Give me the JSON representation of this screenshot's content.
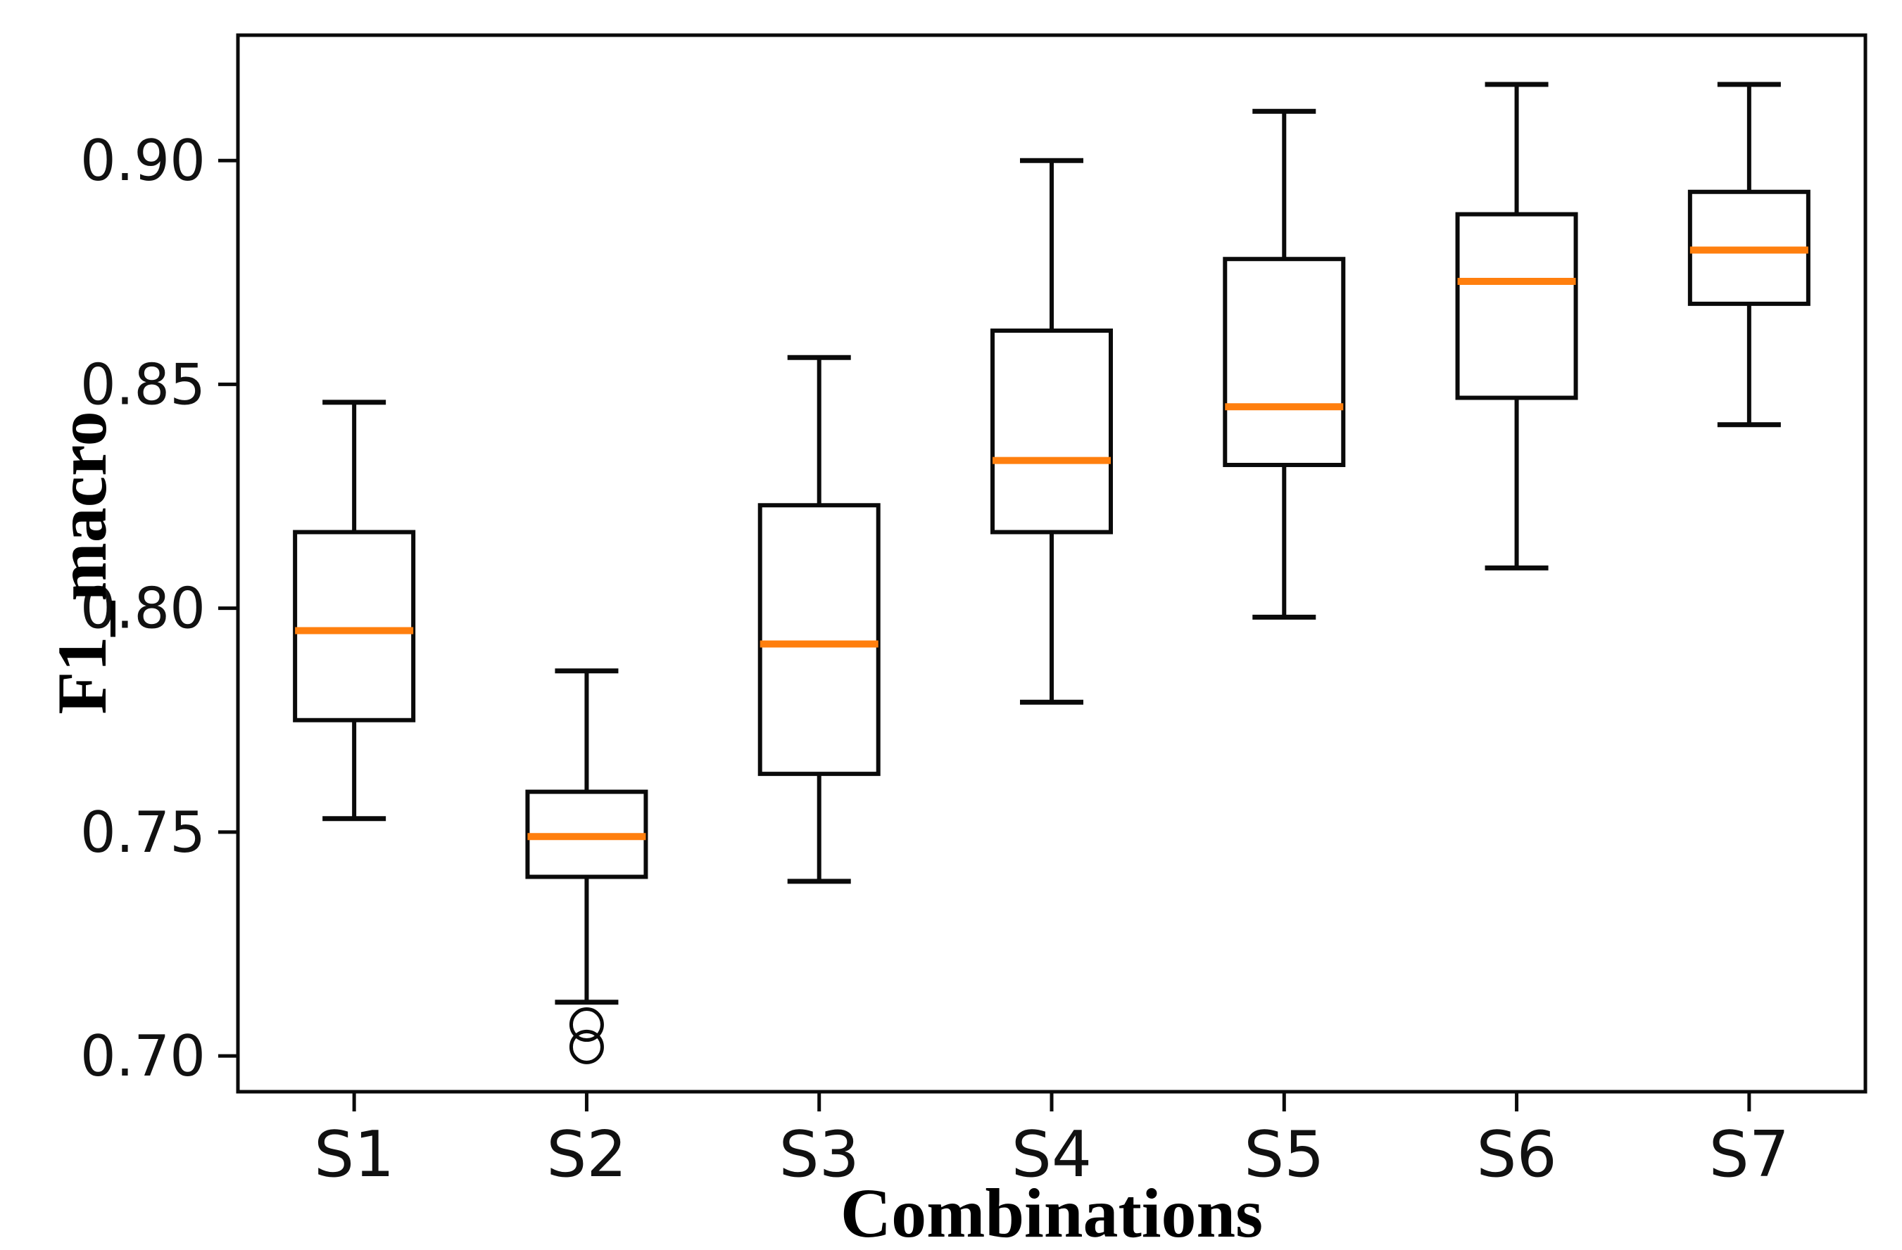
{
  "figure": {
    "background": "#ffffff",
    "border_color": "#0a0a0a"
  },
  "chart_data": {
    "type": "boxplot",
    "title": "",
    "xlabel": "Combinations",
    "ylabel": "F1_macro",
    "categories": [
      "S1",
      "S2",
      "S3",
      "S4",
      "S5",
      "S6",
      "S7"
    ],
    "yticks": [
      0.7,
      0.75,
      0.8,
      0.85,
      0.9
    ],
    "ytick_labels": [
      "0.70",
      "0.75",
      "0.80",
      "0.85",
      "0.90"
    ],
    "ylim": [
      0.692,
      0.928
    ],
    "grid": false,
    "legend": "none",
    "box_color": "#0a0a0a",
    "median_color": "#ff7f0e",
    "series": [
      {
        "label": "S1",
        "whisker_low": 0.753,
        "q1": 0.775,
        "median": 0.795,
        "q3": 0.817,
        "whisker_high": 0.846,
        "outliers": []
      },
      {
        "label": "S2",
        "whisker_low": 0.712,
        "q1": 0.74,
        "median": 0.749,
        "q3": 0.759,
        "whisker_high": 0.786,
        "outliers": [
          0.707,
          0.702
        ]
      },
      {
        "label": "S3",
        "whisker_low": 0.739,
        "q1": 0.763,
        "median": 0.792,
        "q3": 0.823,
        "whisker_high": 0.856,
        "outliers": []
      },
      {
        "label": "S4",
        "whisker_low": 0.779,
        "q1": 0.817,
        "median": 0.833,
        "q3": 0.862,
        "whisker_high": 0.9,
        "outliers": []
      },
      {
        "label": "S5",
        "whisker_low": 0.798,
        "q1": 0.832,
        "median": 0.845,
        "q3": 0.878,
        "whisker_high": 0.911,
        "outliers": []
      },
      {
        "label": "S6",
        "whisker_low": 0.809,
        "q1": 0.847,
        "median": 0.873,
        "q3": 0.888,
        "whisker_high": 0.917,
        "outliers": []
      },
      {
        "label": "S7",
        "whisker_low": 0.841,
        "q1": 0.868,
        "median": 0.88,
        "q3": 0.893,
        "whisker_high": 0.917,
        "outliers": []
      }
    ]
  }
}
